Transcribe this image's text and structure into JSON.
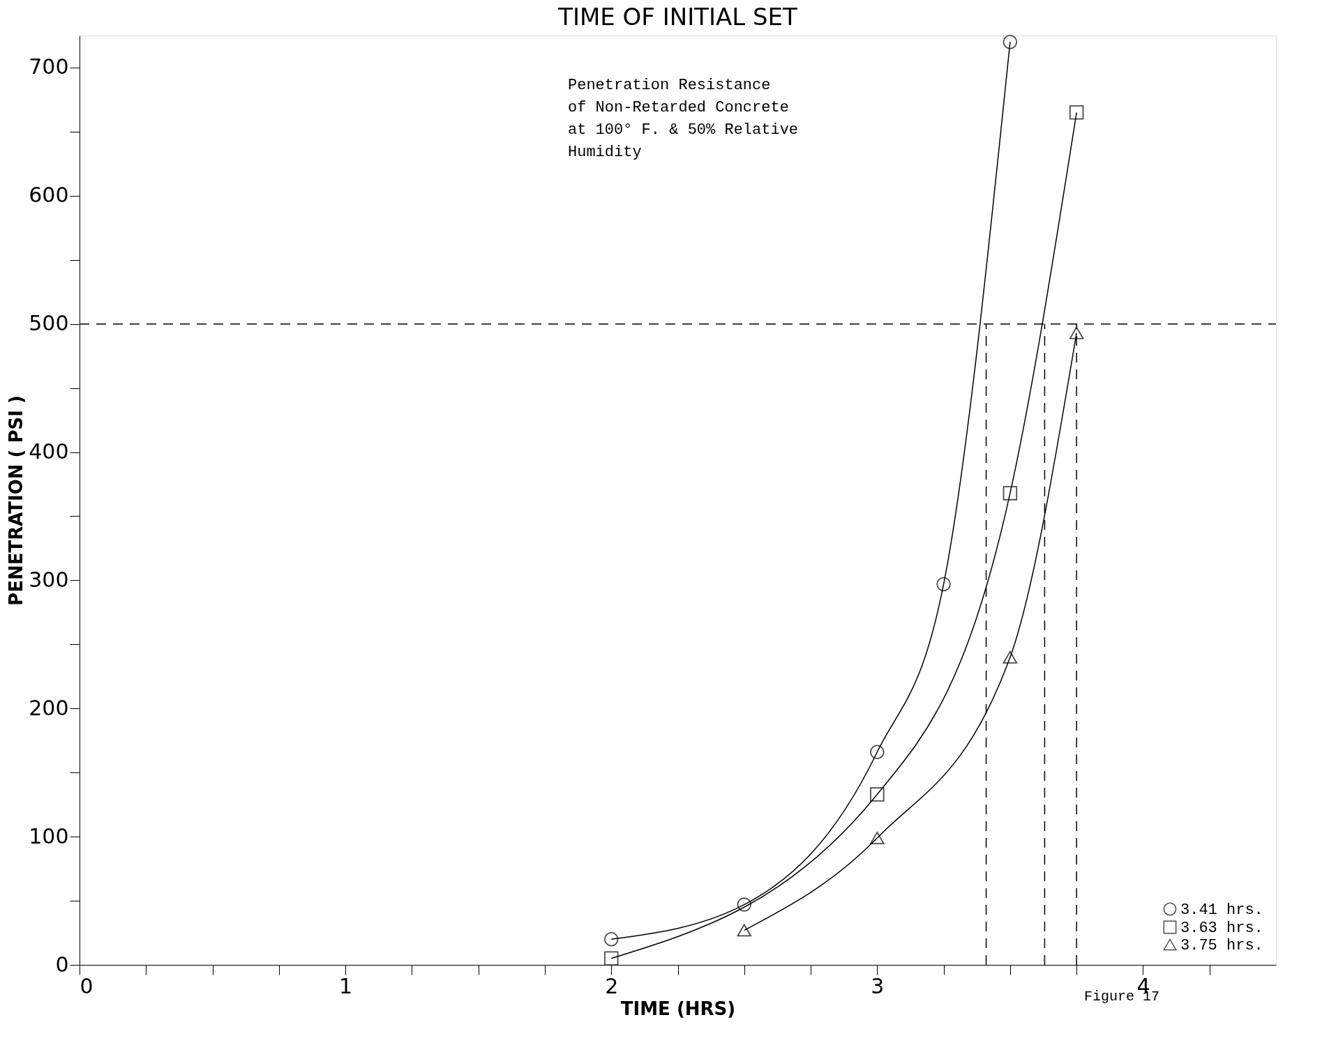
{
  "chart_data": {
    "type": "line",
    "title": "TIME OF INITIAL SET",
    "xlabel": "TIME (HRS)",
    "ylabel": "PENETRATION ( PSI )",
    "annotations": [
      "Penetration Resistance\nof Non-Retarded Concrete\nat 100° F. & 50% Relative\nHumidity",
      "Figure 17"
    ],
    "xlim": [
      0,
      4.5
    ],
    "ylim": [
      0,
      725
    ],
    "xticks": [
      0,
      {
        "value": 0.25,
        "label": null
      },
      {
        "value": 0.5,
        "label": null
      },
      {
        "value": 0.75,
        "label": null
      },
      1,
      {
        "value": 1.25,
        "label": null
      },
      {
        "value": 1.5,
        "label": null
      },
      {
        "value": 1.75,
        "label": null
      },
      2,
      {
        "value": 2.25,
        "label": null
      },
      {
        "value": 2.5,
        "label": null
      },
      {
        "value": 2.75,
        "label": null
      },
      3,
      {
        "value": 3.25,
        "label": null
      },
      {
        "value": 3.5,
        "label": null
      },
      {
        "value": 3.75,
        "label": null
      },
      4,
      {
        "value": 4.25,
        "label": null
      }
    ],
    "yticks": [
      0,
      {
        "value": 50,
        "label": null
      },
      100,
      {
        "value": 150,
        "label": null
      },
      200,
      {
        "value": 250,
        "label": null
      },
      300,
      {
        "value": 350,
        "label": null
      },
      400,
      {
        "value": 450,
        "label": null
      },
      500,
      {
        "value": 550,
        "label": null
      },
      600,
      {
        "value": 650,
        "label": null
      },
      700
    ],
    "series": [
      {
        "name": "3.41 hrs.",
        "color": "#000000",
        "marker": "circle",
        "x": [
          2,
          2.5,
          3,
          3.25,
          3.5
        ],
        "values": [
          20,
          47,
          166,
          297,
          720
        ]
      },
      {
        "name": "3.63 hrs.",
        "color": "#000000",
        "marker": "square",
        "x": [
          2,
          3,
          3.5,
          3.75
        ],
        "values": [
          5,
          133,
          368,
          665
        ]
      },
      {
        "name": "3.75 hrs.",
        "color": "#000000",
        "marker": "triangle",
        "x": [
          2.5,
          3,
          3.5,
          3.75
        ],
        "values": [
          27,
          99,
          240,
          493
        ]
      }
    ],
    "ref_lines": [
      {
        "axis": "y",
        "value": 500,
        "line_style": "dashed"
      },
      {
        "axis": "x",
        "value": 3.41,
        "line_style": "dashed"
      },
      {
        "axis": "x",
        "value": 3.63,
        "line_style": "dashed"
      },
      {
        "axis": "x",
        "value": 3.75,
        "line_style": "dashed"
      }
    ],
    "legend": "bottom right",
    "grid": false,
    "line_style": "solid"
  }
}
